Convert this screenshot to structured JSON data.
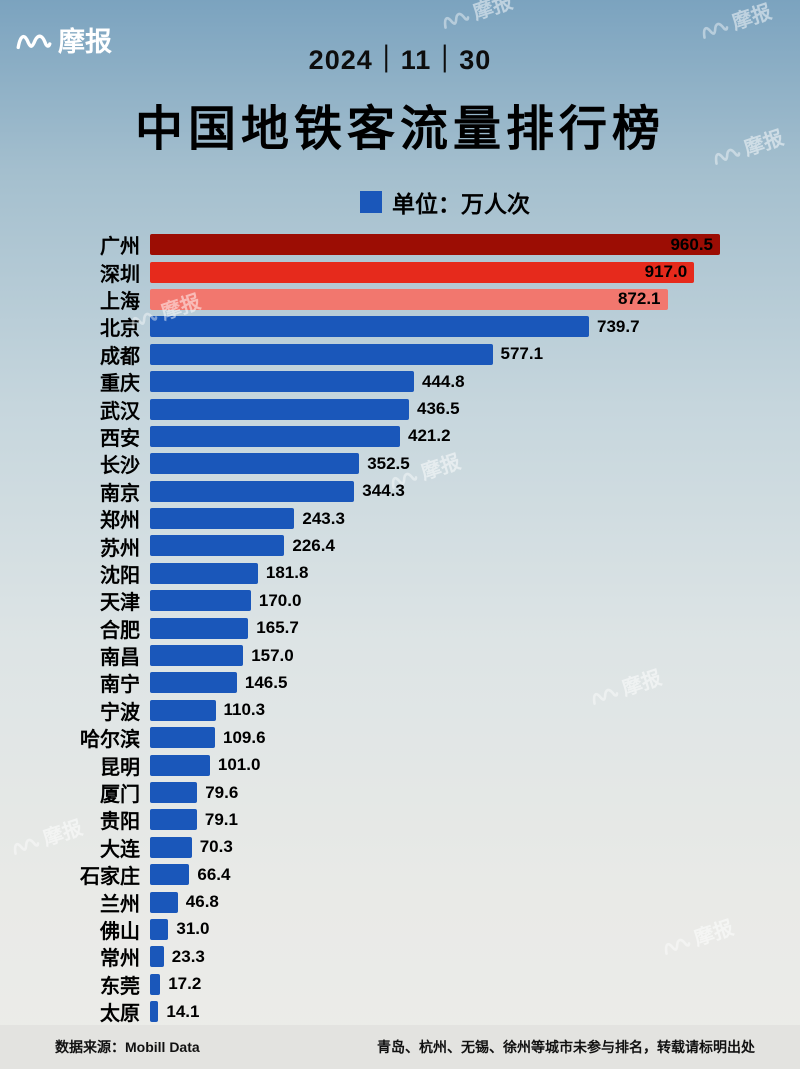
{
  "brand": {
    "name": "摩报"
  },
  "header": {
    "date": "2024｜11｜30",
    "title": "中国地铁客流量排行榜",
    "unit_label": "单位：万人次"
  },
  "chart_data": {
    "type": "bar",
    "orientation": "horizontal",
    "title": "中国地铁客流量排行榜",
    "unit_label": "单位：万人次",
    "xlim": [
      0,
      1000
    ],
    "max_value": 960.5,
    "values_inside_bar": 3,
    "legend_position": "top-center",
    "categories": [
      "广州",
      "深圳",
      "上海",
      "北京",
      "成都",
      "重庆",
      "武汉",
      "西安",
      "长沙",
      "南京",
      "郑州",
      "苏州",
      "沈阳",
      "天津",
      "合肥",
      "南昌",
      "南宁",
      "宁波",
      "哈尔滨",
      "昆明",
      "厦门",
      "贵阳",
      "大连",
      "石家庄",
      "兰州",
      "佛山",
      "常州",
      "东莞",
      "太原"
    ],
    "values": [
      960.5,
      917.0,
      872.1,
      739.7,
      577.1,
      444.8,
      436.5,
      421.2,
      352.5,
      344.3,
      243.3,
      226.4,
      181.8,
      170.0,
      165.7,
      157.0,
      146.5,
      110.3,
      109.6,
      101.0,
      79.6,
      79.1,
      70.3,
      66.4,
      46.8,
      31.0,
      23.3,
      17.2,
      14.1
    ],
    "palette": {
      "rank1": "#9c0d04",
      "rank2": "#e62a1c",
      "rank3": "#f2776e",
      "others": "#1a57ba"
    }
  },
  "footer": {
    "source": "数据来源：Mobill Data",
    "note": "青岛、杭州、无锡、徐州等城市未参与排名，转载请标明出处"
  }
}
